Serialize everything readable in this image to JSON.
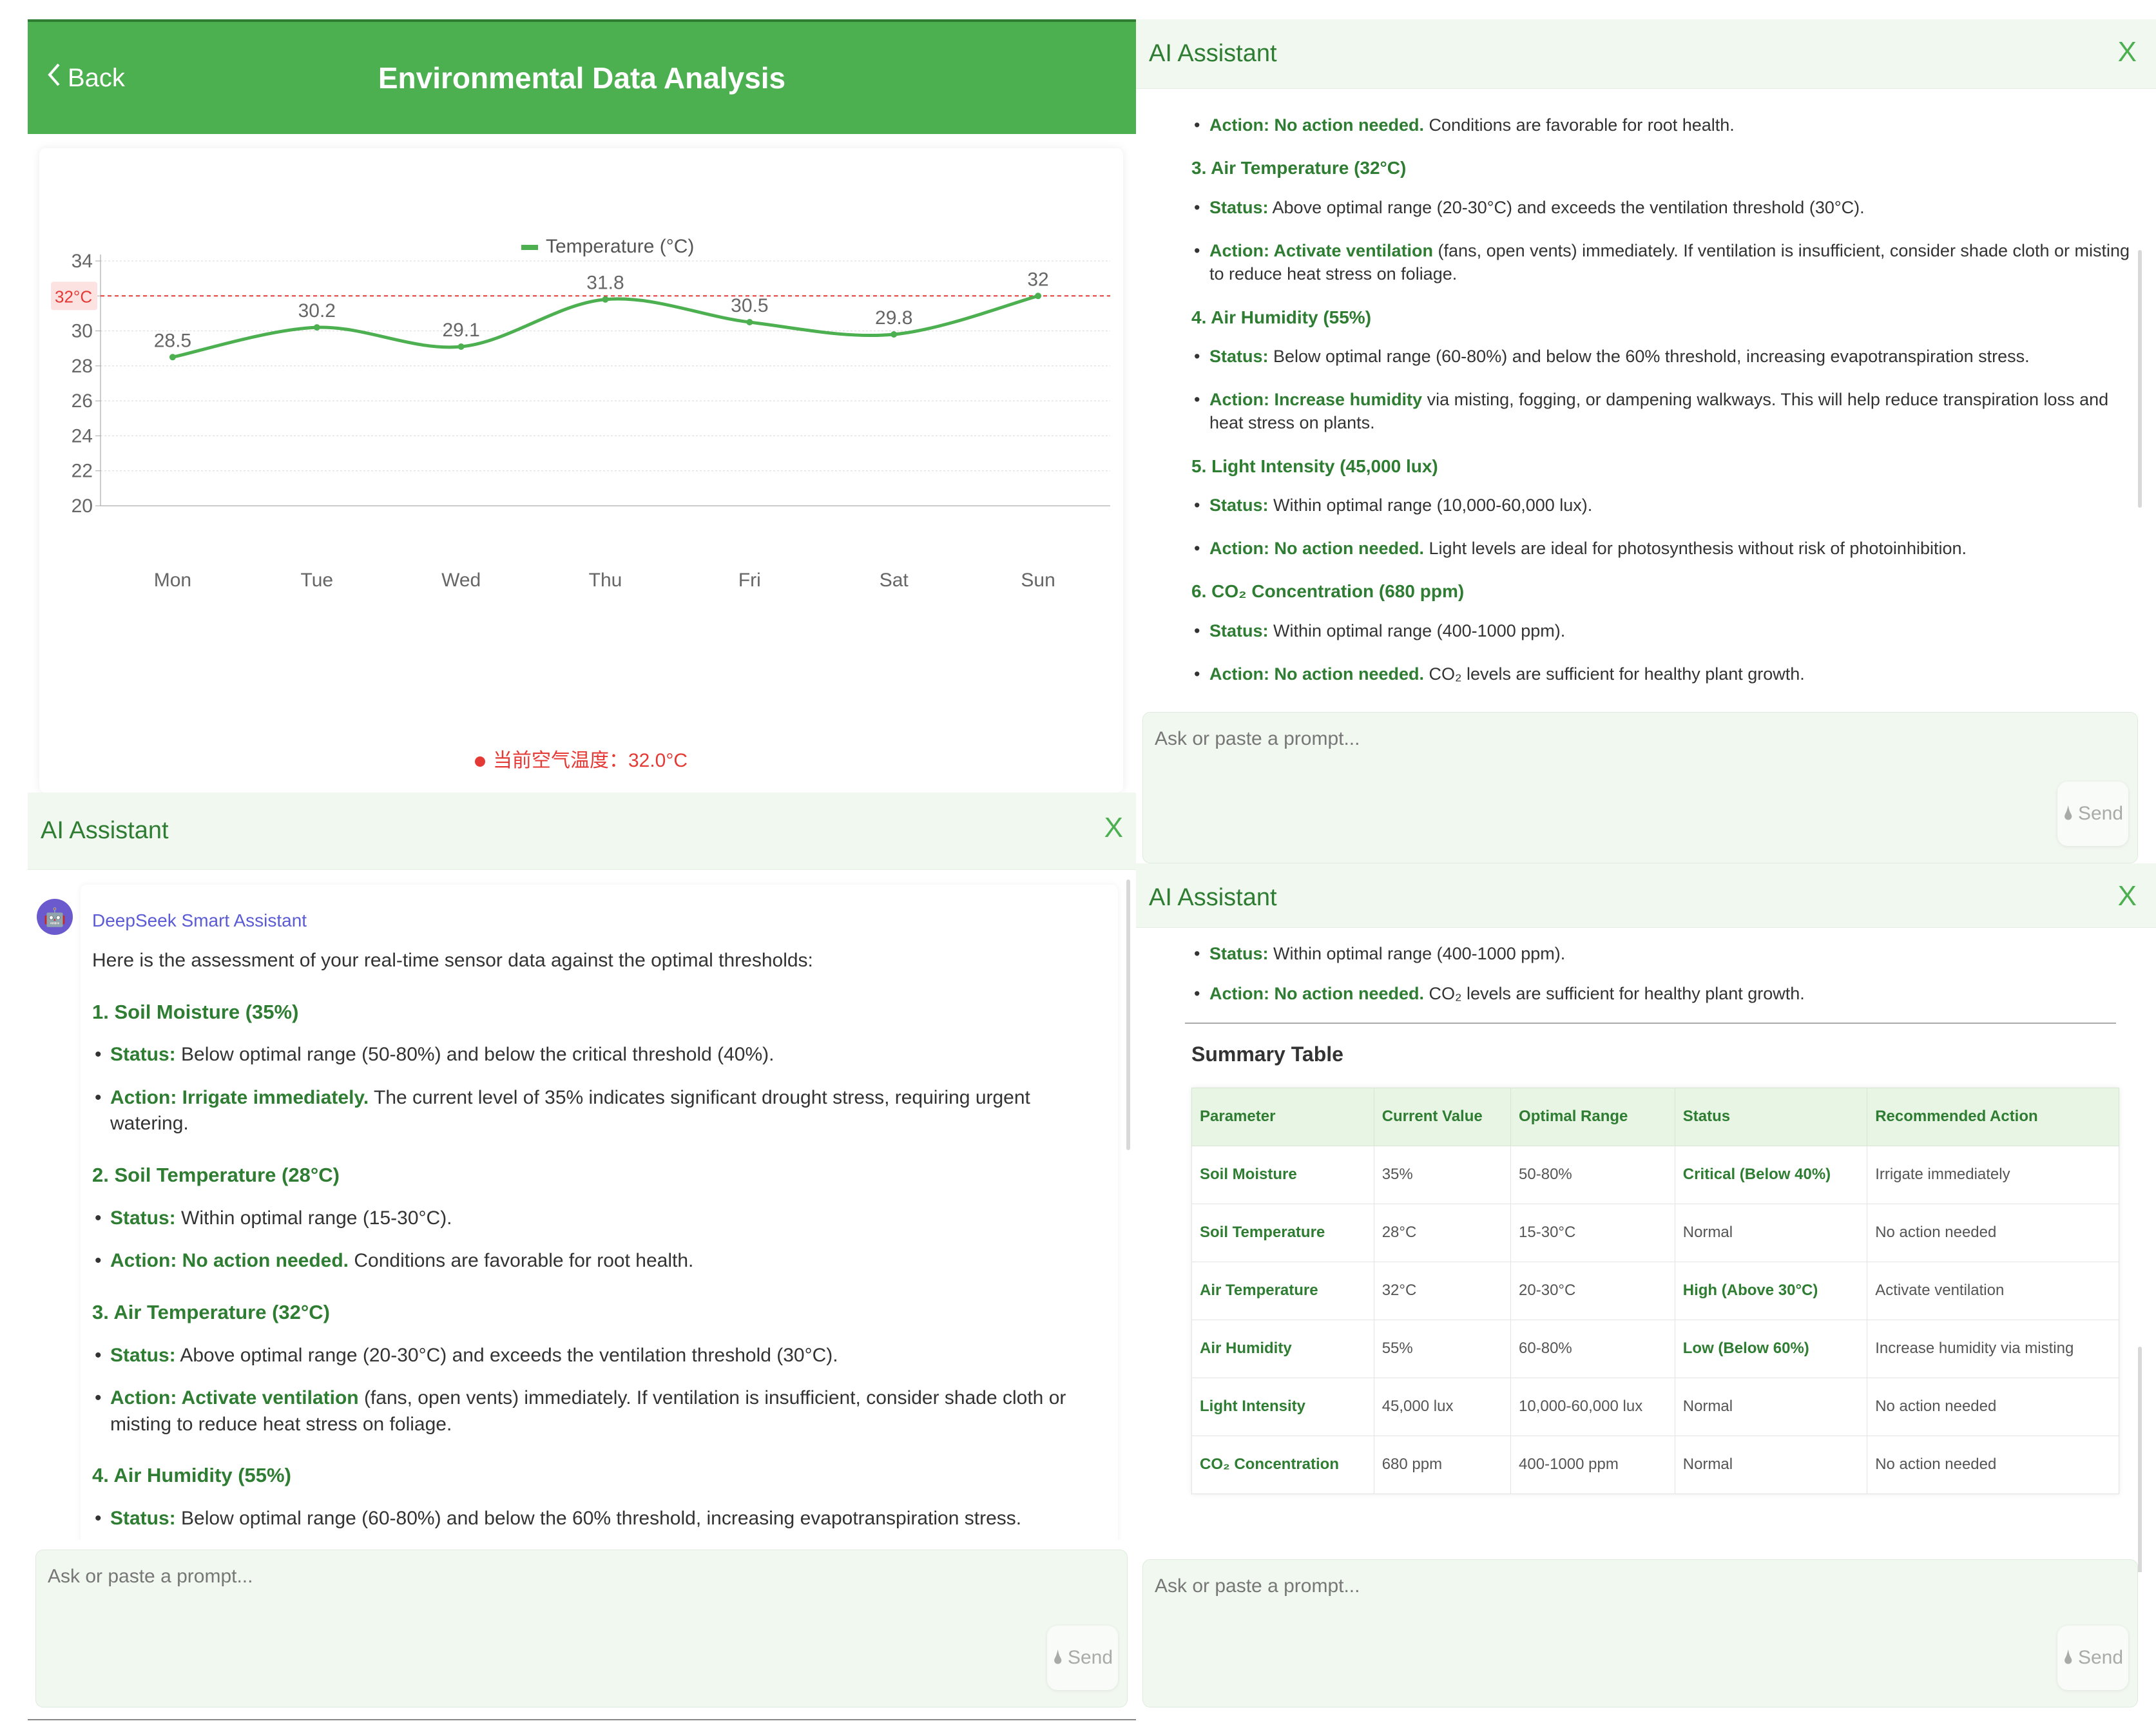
{
  "header": {
    "back_label": "Back",
    "title": "Environmental Data Analysis"
  },
  "chart_data": {
    "type": "line",
    "categories": [
      "Mon",
      "Tue",
      "Wed",
      "Thu",
      "Fri",
      "Sat",
      "Sun"
    ],
    "series": [
      {
        "name": "Temperature (°C)",
        "values": [
          28.5,
          30.2,
          29.1,
          31.8,
          30.5,
          29.8,
          32
        ],
        "color": "#4caf50"
      }
    ],
    "data_labels": [
      "28.5",
      "30.2",
      "29.1",
      "31.8",
      "30.5",
      "29.8",
      "32"
    ],
    "yticks": [
      "34",
      "32",
      "30",
      "28",
      "26",
      "24",
      "22",
      "20"
    ],
    "ylim": [
      20,
      34
    ],
    "threshold": {
      "value": 32,
      "label": "32°C",
      "color": "#e53935"
    },
    "legend": "top-center",
    "grid": true
  },
  "current_temp": "当前空气温度：32.0°C",
  "assistant": {
    "title": "AI Assistant",
    "close_label": "X",
    "prompt_placeholder": "Ask or paste a prompt...",
    "send_label": "Send",
    "sender_name": "DeepSeek Smart Assistant"
  },
  "message": {
    "intro": "Here is the assessment of your real-time sensor data against the optimal thresholds:",
    "sections": [
      {
        "heading": "1. Soil Moisture (35%)",
        "status_label": "Status:",
        "status_text": " Below optimal range (50-80%) and below the critical threshold (40%).",
        "action_label": "Action: Irrigate immediately.",
        "action_text": " The current level of 35% indicates significant drought stress, requiring urgent watering."
      },
      {
        "heading": "2. Soil Temperature (28°C)",
        "status_label": "Status:",
        "status_text": " Within optimal range (15-30°C).",
        "action_label": "Action: No action needed.",
        "action_text": " Conditions are favorable for root health."
      },
      {
        "heading": "3. Air Temperature (32°C)",
        "status_label": "Status:",
        "status_text": " Above optimal range (20-30°C) and exceeds the ventilation threshold (30°C).",
        "action_label": "Action: Activate ventilation",
        "action_text": " (fans, open vents) immediately. If ventilation is insufficient, consider shade cloth or misting to reduce heat stress on foliage."
      },
      {
        "heading": "4. Air Humidity (55%)",
        "status_label": "Status:",
        "status_text": " Below optimal range (60-80%) and below the 60% threshold, increasing evapotranspiration stress.",
        "action_label": "Action: Increase humidity",
        "action_text": " via misting, fogging, or dampening walkways. This will help reduce transpiration loss and heat stress on plants."
      },
      {
        "heading": "5. Light Intensity (45,000 lux)",
        "status_label": "Status:",
        "status_text": " Within optimal range (10,000-60,000 lux).",
        "action_label": "Action: No action needed.",
        "action_text": " Light levels are ideal for photosynthesis without risk of photoinhibition."
      },
      {
        "heading": "6. CO₂ Concentration (680 ppm)",
        "status_label": "Status:",
        "status_text": " Within optimal range (400-1000 ppm).",
        "action_label": "Action: No action needed.",
        "action_text": " CO₂ levels are sufficient for healthy plant growth."
      }
    ],
    "summary_title": "Summary Table",
    "table": {
      "headers": [
        "Parameter",
        "Current Value",
        "Optimal Range",
        "Status",
        "Recommended Action"
      ],
      "rows": [
        [
          "Soil Moisture",
          "35%",
          "50-80%",
          "Critical (Below 40%)",
          "Irrigate immediately"
        ],
        [
          "Soil Temperature",
          "28°C",
          "15-30°C",
          "Normal",
          "No action needed"
        ],
        [
          "Air Temperature",
          "32°C",
          "20-30°C",
          "High (Above 30°C)",
          "Activate ventilation"
        ],
        [
          "Air Humidity",
          "55%",
          "60-80%",
          "Low (Below 60%)",
          "Increase humidity via misting"
        ],
        [
          "Light Intensity",
          "45,000 lux",
          "10,000-60,000 lux",
          "Normal",
          "No action needed"
        ],
        [
          "CO₂ Concentration",
          "680 ppm",
          "400-1000 ppm",
          "Normal",
          "No action needed"
        ]
      ],
      "highlight_status_rows": [
        0,
        2,
        3
      ]
    }
  }
}
